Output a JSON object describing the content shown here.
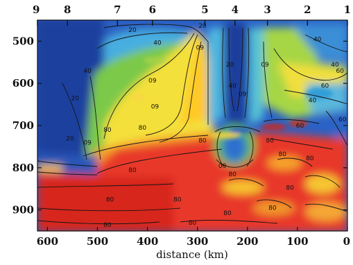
{
  "chart_data": {
    "type": "heatmap",
    "xlabel": "distance (km)",
    "ylabel": "",
    "xlim": [
      620,
      0
    ],
    "ylim": [
      950,
      450
    ],
    "x_ticks": [
      600,
      500,
      400,
      300,
      200,
      100,
      0
    ],
    "y_ticks": [
      500,
      600,
      700,
      800,
      900
    ],
    "stations": [
      {
        "label": "9",
        "x": 620
      },
      {
        "label": "8",
        "x": 560
      },
      {
        "label": "7",
        "x": 460
      },
      {
        "label": "6",
        "x": 390
      },
      {
        "label": "5",
        "x": 285
      },
      {
        "label": "4",
        "x": 225
      },
      {
        "label": "3",
        "x": 160
      },
      {
        "label": "2",
        "x": 80
      },
      {
        "label": "1",
        "x": 0
      }
    ],
    "contour_levels": [
      20,
      40,
      60,
      80
    ],
    "contour_labels": [
      {
        "text": "20",
        "x": 430,
        "y": 478
      },
      {
        "text": "40",
        "x": 380,
        "y": 508
      },
      {
        "text": "20",
        "x": 290,
        "y": 468
      },
      {
        "text": "09",
        "x": 295,
        "y": 520
      },
      {
        "text": "09",
        "x": 390,
        "y": 598
      },
      {
        "text": "40",
        "x": 520,
        "y": 575
      },
      {
        "text": "20",
        "x": 545,
        "y": 640
      },
      {
        "text": "09",
        "x": 385,
        "y": 660
      },
      {
        "text": "80",
        "x": 410,
        "y": 710
      },
      {
        "text": "80",
        "x": 480,
        "y": 715
      },
      {
        "text": "20",
        "x": 555,
        "y": 735
      },
      {
        "text": "09",
        "x": 520,
        "y": 745
      },
      {
        "text": "80",
        "x": 290,
        "y": 740
      },
      {
        "text": "80",
        "x": 430,
        "y": 810
      },
      {
        "text": "09",
        "x": 250,
        "y": 800
      },
      {
        "text": "80",
        "x": 230,
        "y": 820
      },
      {
        "text": "20",
        "x": 235,
        "y": 560
      },
      {
        "text": "40",
        "x": 230,
        "y": 610
      },
      {
        "text": "09",
        "x": 210,
        "y": 630
      },
      {
        "text": "09",
        "x": 165,
        "y": 560
      },
      {
        "text": "40",
        "x": 60,
        "y": 500
      },
      {
        "text": "40",
        "x": 25,
        "y": 560
      },
      {
        "text": "60",
        "x": 15,
        "y": 575
      },
      {
        "text": "60",
        "x": 45,
        "y": 610
      },
      {
        "text": "40",
        "x": 70,
        "y": 645
      },
      {
        "text": "60",
        "x": 10,
        "y": 690
      },
      {
        "text": "80",
        "x": 155,
        "y": 740
      },
      {
        "text": "60",
        "x": 95,
        "y": 705
      },
      {
        "text": "80",
        "x": 130,
        "y": 772
      },
      {
        "text": "80",
        "x": 75,
        "y": 782
      },
      {
        "text": "80",
        "x": 115,
        "y": 852
      },
      {
        "text": "80",
        "x": 150,
        "y": 900
      },
      {
        "text": "80",
        "x": 340,
        "y": 880
      },
      {
        "text": "80",
        "x": 475,
        "y": 880
      },
      {
        "text": "80",
        "x": 240,
        "y": 912
      },
      {
        "text": "80",
        "x": 310,
        "y": 935
      },
      {
        "text": "80",
        "x": 480,
        "y": 940
      }
    ]
  }
}
